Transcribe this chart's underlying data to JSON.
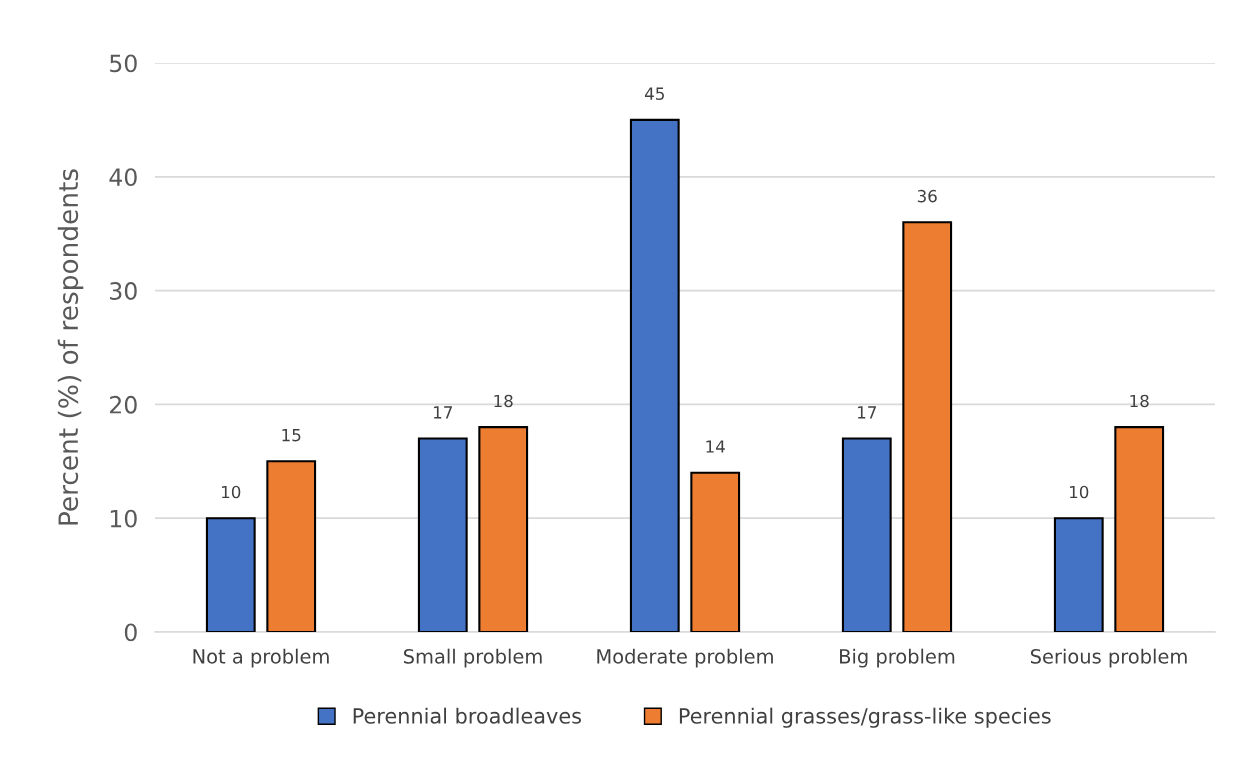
{
  "chart_data": {
    "type": "bar",
    "ylabel": "Percent (%) of respondents",
    "categories": [
      "Not a problem",
      "Small problem",
      "Moderate problem",
      "Big problem",
      "Serious problem"
    ],
    "series": [
      {
        "name": "Perennial broadleaves",
        "color": "#4472c4",
        "values": [
          10,
          17,
          45,
          17,
          10
        ]
      },
      {
        "name": "Perennial grasses/grass-like species",
        "color": "#ed7d31",
        "values": [
          15,
          18,
          14,
          36,
          18
        ]
      }
    ],
    "ylim": [
      0,
      50
    ],
    "yticks": [
      0,
      10,
      20,
      30,
      40,
      50
    ],
    "grid": "y",
    "legend": "bottom",
    "data_labels": true
  }
}
